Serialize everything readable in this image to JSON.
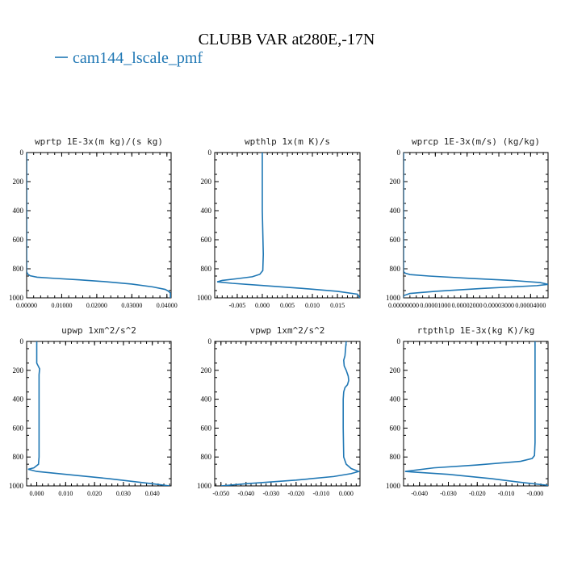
{
  "figure": {
    "title": "CLUBB VAR at280E,-17N",
    "legend_label": "cam144_lscale_pmf",
    "line_color": "#1f77b4"
  },
  "chart_data": [
    {
      "type": "line",
      "title": "wprtp  1E-3x(m kg)/(s kg)",
      "xlim": [
        0,
        0.0412
      ],
      "ylim": [
        1000,
        0
      ],
      "x_ticks": [
        0,
        0.01,
        0.02,
        0.03,
        0.04
      ],
      "x_tick_labels": [
        "0.00000",
        "0.01000",
        "0.02000",
        "0.03000",
        "0.04000"
      ],
      "y_ticks": [
        0,
        200,
        400,
        600,
        800,
        1000
      ],
      "y_tick_labels": [
        "0",
        "200",
        "400",
        "600",
        "800",
        "1000"
      ],
      "series": [
        {
          "x": [
            0,
            0,
            0.0003,
            0.001,
            0.003,
            0.008,
            0.015,
            0.022,
            0.03,
            0.036,
            0.0395,
            0.0405,
            0.041,
            0.041
          ],
          "y": [
            0,
            820,
            836,
            848,
            858,
            866,
            876,
            888,
            905,
            925,
            942,
            955,
            968,
            1000
          ]
        }
      ]
    },
    {
      "type": "line",
      "title": "wpthlp  1x(m K)/s",
      "xlim": [
        -0.0095,
        0.0195
      ],
      "ylim": [
        1000,
        0
      ],
      "x_ticks": [
        -0.005,
        0,
        0.005,
        0.01,
        0.015
      ],
      "x_tick_labels": [
        "-0.005",
        "0.000",
        "0.005",
        "0.010",
        "0.015"
      ],
      "y_ticks": [
        0,
        200,
        400,
        600,
        800,
        1000
      ],
      "y_tick_labels": [
        "0",
        "200",
        "400",
        "600",
        "800",
        "1000"
      ],
      "series": [
        {
          "x": [
            0,
            0,
            0.0002,
            0.0001,
            -0.0005,
            -0.002,
            -0.005,
            -0.008,
            -0.009,
            -0.006,
            0,
            0.008,
            0.015,
            0.019,
            0.0195
          ],
          "y": [
            0,
            400,
            700,
            812,
            838,
            855,
            868,
            880,
            890,
            900,
            915,
            935,
            955,
            975,
            1000
          ]
        }
      ]
    },
    {
      "type": "line",
      "title": "wprcp  1E-3x(m/s) (kg/kg)",
      "xlim": [
        0,
        4.55e-05
      ],
      "ylim": [
        1000,
        0
      ],
      "x_ticks": [
        0,
        1e-05,
        2e-05,
        3e-05,
        4e-05
      ],
      "x_tick_labels": [
        "0.00000000",
        "0.00001000",
        "0.00002000",
        "0.00003000",
        "0.00004000"
      ],
      "y_ticks": [
        0,
        200,
        400,
        600,
        800,
        1000
      ],
      "y_tick_labels": [
        "0",
        "200",
        "400",
        "600",
        "800",
        "1000"
      ],
      "series": [
        {
          "x": [
            0,
            0,
            5e-07,
            2e-06,
            8e-06,
            2e-05,
            3.4e-05,
            4.3e-05,
            4.55e-05,
            4.2e-05,
            2.5e-05,
            1e-05,
            2e-06,
            0,
            0
          ],
          "y": [
            0,
            820,
            830,
            840,
            850,
            865,
            880,
            895,
            907,
            916,
            935,
            955,
            970,
            985,
            1000
          ]
        }
      ]
    },
    {
      "type": "line",
      "title": "upwp  1xm^2/s^2",
      "xlim": [
        -0.0035,
        0.0465
      ],
      "ylim": [
        1000,
        0
      ],
      "x_ticks": [
        0,
        0.01,
        0.02,
        0.03,
        0.04
      ],
      "x_tick_labels": [
        "0.000",
        "0.010",
        "0.020",
        "0.030",
        "0.040"
      ],
      "y_ticks": [
        0,
        200,
        400,
        600,
        800,
        1000
      ],
      "y_tick_labels": [
        "0",
        "200",
        "400",
        "600",
        "800",
        "1000"
      ],
      "series": [
        {
          "x": [
            0,
            0,
            0,
            0.0005,
            0.001,
            0.0008,
            0.0008,
            0.0008,
            0.0008,
            0.0006,
            -0.001,
            -0.003,
            0,
            0.01,
            0.025,
            0.04,
            0.046
          ],
          "y": [
            0,
            120,
            150,
            170,
            190,
            230,
            400,
            600,
            800,
            850,
            875,
            885,
            900,
            920,
            950,
            985,
            1000
          ]
        }
      ]
    },
    {
      "type": "line",
      "title": "vpwp  1xm^2/s^2",
      "xlim": [
        -0.0525,
        0.0055
      ],
      "ylim": [
        1000,
        0
      ],
      "x_ticks": [
        -0.05,
        -0.04,
        -0.03,
        -0.02,
        -0.01,
        0
      ],
      "x_tick_labels": [
        "-0.050",
        "-0.040",
        "-0.030",
        "-0.020",
        "-0.010",
        "0.000"
      ],
      "y_ticks": [
        0,
        200,
        400,
        600,
        800,
        1000
      ],
      "y_tick_labels": [
        "0",
        "200",
        "400",
        "600",
        "800",
        "1000"
      ],
      "series": [
        {
          "x": [
            0,
            -0.0005,
            -0.001,
            -0.0008,
            0,
            0.0008,
            0.001,
            0.0005,
            -0.0005,
            -0.001,
            -0.0012,
            -0.0012,
            -0.001,
            0,
            0.002,
            0.005,
            0.002,
            -0.005,
            -0.02,
            -0.04,
            -0.05
          ],
          "y": [
            0,
            100,
            130,
            170,
            200,
            240,
            270,
            300,
            320,
            350,
            400,
            600,
            800,
            850,
            880,
            900,
            915,
            935,
            960,
            985,
            1000
          ]
        }
      ]
    },
    {
      "type": "line",
      "title": "rtpthlp  1E-3x(kg K)/kg",
      "xlim": [
        -0.0455,
        0.0045
      ],
      "ylim": [
        1000,
        0
      ],
      "x_ticks": [
        -0.04,
        -0.03,
        -0.02,
        -0.01,
        0
      ],
      "x_tick_labels": [
        "-0.040",
        "-0.030",
        "-0.020",
        "-0.010",
        "-0.000"
      ],
      "y_ticks": [
        0,
        200,
        400,
        600,
        800,
        1000
      ],
      "y_tick_labels": [
        "0",
        "200",
        "400",
        "600",
        "800",
        "1000"
      ],
      "series": [
        {
          "x": [
            0,
            0,
            -0.0002,
            -0.001,
            -0.005,
            -0.02,
            -0.035,
            -0.045,
            -0.03,
            -0.015,
            -0.005,
            0.004,
            0.0045
          ],
          "y": [
            0,
            700,
            790,
            810,
            830,
            855,
            875,
            900,
            920,
            950,
            975,
            995,
            1000
          ]
        }
      ]
    }
  ]
}
